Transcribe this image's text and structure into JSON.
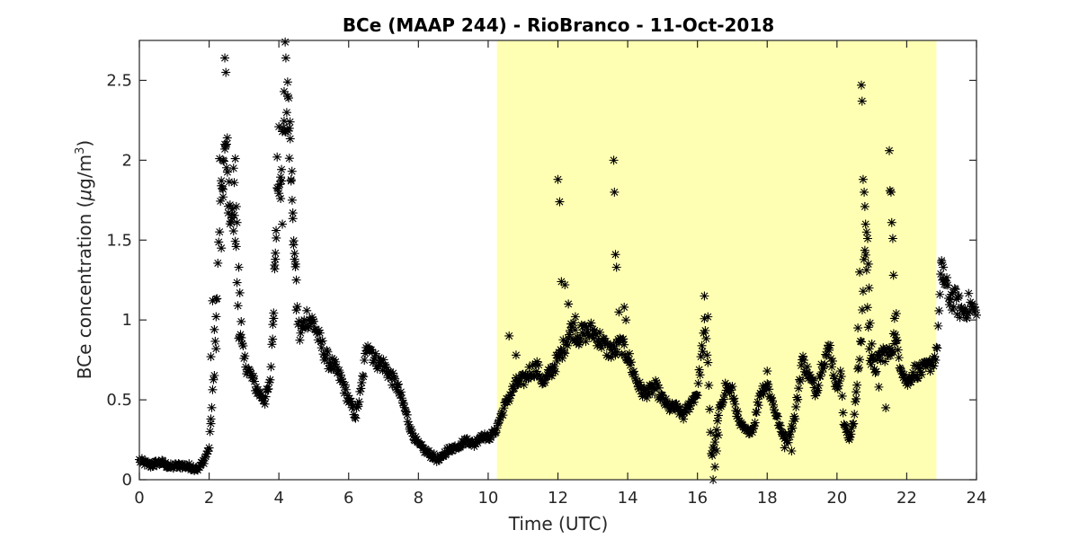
{
  "chart_data": {
    "type": "scatter",
    "title": "BCe (MAAP 244) - RioBranco - 11-Oct-2018",
    "xlabel": "Time (UTC)",
    "ylabel_main": "BCe concentration (",
    "ylabel_mu": "μ",
    "ylabel_unit": "g/m",
    "ylabel_sup": "3",
    "ylabel_close": ")",
    "xlim": [
      0,
      24
    ],
    "ylim": [
      0,
      2.75
    ],
    "xticks": [
      0,
      2,
      4,
      6,
      8,
      10,
      12,
      14,
      16,
      18,
      20,
      22,
      24
    ],
    "yticks": [
      0,
      0.5,
      1,
      1.5,
      2,
      2.5
    ],
    "ytick_labels": [
      "0",
      "0.5",
      "1",
      "1.5",
      "2",
      "2.5"
    ],
    "marker": "asterisk",
    "marker_color": "#000000",
    "highlight": {
      "x_start": 10.25,
      "x_end": 22.85,
      "color": "#ffffb3"
    },
    "keypoints": [
      [
        0.0,
        0.12
      ],
      [
        0.3,
        0.09
      ],
      [
        0.6,
        0.11
      ],
      [
        0.9,
        0.08
      ],
      [
        1.2,
        0.09
      ],
      [
        1.5,
        0.08
      ],
      [
        1.7,
        0.07
      ],
      [
        1.85,
        0.12
      ],
      [
        2.0,
        0.2
      ],
      [
        2.15,
        0.7
      ],
      [
        2.3,
        1.6
      ],
      [
        2.45,
        2.05
      ],
      [
        2.6,
        1.7
      ],
      [
        2.75,
        1.55
      ],
      [
        2.85,
        0.95
      ],
      [
        3.0,
        0.75
      ],
      [
        3.2,
        0.65
      ],
      [
        3.4,
        0.55
      ],
      [
        3.6,
        0.5
      ],
      [
        3.75,
        0.6
      ],
      [
        3.85,
        1.1
      ],
      [
        3.95,
        1.8
      ],
      [
        4.1,
        2.1
      ],
      [
        4.25,
        2.35
      ],
      [
        4.4,
        1.7
      ],
      [
        4.5,
        1.1
      ],
      [
        4.6,
        0.9
      ],
      [
        4.8,
        1.02
      ],
      [
        5.0,
        0.98
      ],
      [
        5.2,
        0.85
      ],
      [
        5.4,
        0.75
      ],
      [
        5.6,
        0.7
      ],
      [
        5.8,
        0.62
      ],
      [
        6.0,
        0.5
      ],
      [
        6.2,
        0.4
      ],
      [
        6.35,
        0.55
      ],
      [
        6.55,
        0.88
      ],
      [
        6.75,
        0.75
      ],
      [
        7.0,
        0.72
      ],
      [
        7.2,
        0.65
      ],
      [
        7.4,
        0.58
      ],
      [
        7.6,
        0.45
      ],
      [
        7.8,
        0.3
      ],
      [
        8.0,
        0.22
      ],
      [
        8.2,
        0.18
      ],
      [
        8.4,
        0.15
      ],
      [
        8.6,
        0.12
      ],
      [
        8.8,
        0.18
      ],
      [
        9.0,
        0.2
      ],
      [
        9.2,
        0.22
      ],
      [
        9.4,
        0.25
      ],
      [
        9.6,
        0.22
      ],
      [
        9.8,
        0.28
      ],
      [
        10.0,
        0.26
      ],
      [
        10.2,
        0.3
      ],
      [
        10.4,
        0.42
      ],
      [
        10.6,
        0.52
      ],
      [
        10.8,
        0.6
      ],
      [
        11.0,
        0.62
      ],
      [
        11.2,
        0.68
      ],
      [
        11.4,
        0.7
      ],
      [
        11.6,
        0.6
      ],
      [
        11.8,
        0.68
      ],
      [
        12.0,
        0.75
      ],
      [
        12.2,
        0.85
      ],
      [
        12.4,
        0.95
      ],
      [
        12.6,
        0.9
      ],
      [
        12.8,
        0.92
      ],
      [
        13.0,
        0.93
      ],
      [
        13.2,
        0.88
      ],
      [
        13.4,
        0.82
      ],
      [
        13.6,
        0.8
      ],
      [
        13.8,
        0.85
      ],
      [
        14.0,
        0.78
      ],
      [
        14.2,
        0.65
      ],
      [
        14.4,
        0.55
      ],
      [
        14.6,
        0.55
      ],
      [
        14.8,
        0.58
      ],
      [
        15.0,
        0.5
      ],
      [
        15.2,
        0.45
      ],
      [
        15.4,
        0.45
      ],
      [
        15.6,
        0.4
      ],
      [
        15.8,
        0.48
      ],
      [
        16.0,
        0.55
      ],
      [
        16.2,
        0.95
      ],
      [
        16.3,
        0.75
      ],
      [
        16.4,
        0.15
      ],
      [
        16.5,
        0.22
      ],
      [
        16.6,
        0.4
      ],
      [
        16.8,
        0.58
      ],
      [
        17.0,
        0.55
      ],
      [
        17.2,
        0.35
      ],
      [
        17.4,
        0.3
      ],
      [
        17.6,
        0.32
      ],
      [
        17.8,
        0.55
      ],
      [
        18.0,
        0.6
      ],
      [
        18.2,
        0.45
      ],
      [
        18.4,
        0.3
      ],
      [
        18.6,
        0.25
      ],
      [
        18.8,
        0.4
      ],
      [
        19.0,
        0.75
      ],
      [
        19.2,
        0.65
      ],
      [
        19.4,
        0.55
      ],
      [
        19.6,
        0.75
      ],
      [
        19.8,
        0.82
      ],
      [
        20.0,
        0.55
      ],
      [
        20.1,
        0.7
      ],
      [
        20.2,
        0.35
      ],
      [
        20.35,
        0.25
      ],
      [
        20.5,
        0.4
      ],
      [
        20.7,
        0.9
      ],
      [
        20.8,
        1.5
      ],
      [
        20.95,
        0.75
      ],
      [
        21.1,
        0.7
      ],
      [
        21.3,
        0.8
      ],
      [
        21.5,
        0.78
      ],
      [
        21.65,
        0.9
      ],
      [
        21.8,
        0.75
      ],
      [
        22.0,
        0.6
      ],
      [
        22.2,
        0.68
      ],
      [
        22.4,
        0.68
      ],
      [
        22.6,
        0.7
      ],
      [
        22.85,
        0.78
      ],
      [
        23.0,
        1.3
      ],
      [
        23.2,
        1.15
      ],
      [
        23.4,
        1.12
      ],
      [
        23.6,
        1.05
      ],
      [
        23.8,
        1.1
      ],
      [
        24.0,
        1.03
      ]
    ],
    "scatter_points": [
      [
        2.05,
        0.38
      ],
      [
        2.05,
        0.77
      ],
      [
        2.1,
        1.12
      ],
      [
        2.15,
        0.94
      ],
      [
        2.2,
        1.13
      ],
      [
        2.2,
        0.82
      ],
      [
        2.3,
        2.01
      ],
      [
        2.35,
        1.84
      ],
      [
        2.35,
        1.45
      ],
      [
        2.4,
        1.77
      ],
      [
        2.4,
        2.0
      ],
      [
        2.45,
        2.07
      ],
      [
        2.45,
        2.64
      ],
      [
        2.48,
        2.55
      ],
      [
        2.5,
        2.1
      ],
      [
        2.52,
        2.14
      ],
      [
        2.55,
        1.67
      ],
      [
        2.6,
        1.72
      ],
      [
        2.65,
        1.66
      ],
      [
        2.7,
        1.95
      ],
      [
        2.72,
        1.86
      ],
      [
        2.75,
        2.01
      ],
      [
        2.78,
        1.71
      ],
      [
        2.8,
        1.61
      ],
      [
        2.85,
        1.33
      ],
      [
        2.88,
        1.17
      ],
      [
        2.92,
        0.99
      ],
      [
        3.82,
        0.88
      ],
      [
        3.85,
        1.01
      ],
      [
        3.88,
        1.32
      ],
      [
        3.9,
        1.38
      ],
      [
        3.92,
        1.56
      ],
      [
        3.95,
        2.02
      ],
      [
        4.0,
        2.21
      ],
      [
        4.02,
        1.85
      ],
      [
        4.05,
        1.76
      ],
      [
        4.08,
        1.87
      ],
      [
        4.1,
        1.6
      ],
      [
        4.15,
        2.43
      ],
      [
        4.18,
        2.74
      ],
      [
        4.2,
        2.64
      ],
      [
        4.25,
        2.4
      ],
      [
        4.28,
        2.39
      ],
      [
        4.3,
        2.2
      ],
      [
        4.32,
        2.24
      ],
      [
        4.35,
        1.87
      ],
      [
        4.38,
        1.75
      ],
      [
        4.4,
        1.67
      ],
      [
        4.42,
        1.47
      ],
      [
        4.45,
        1.38
      ],
      [
        4.48,
        1.35
      ],
      [
        4.5,
        1.25
      ],
      [
        10.6,
        0.9
      ],
      [
        10.8,
        0.78
      ],
      [
        12.0,
        1.88
      ],
      [
        12.05,
        1.74
      ],
      [
        12.1,
        1.24
      ],
      [
        12.2,
        1.22
      ],
      [
        12.3,
        1.1
      ],
      [
        12.5,
        1.02
      ],
      [
        13.6,
        2.0
      ],
      [
        13.62,
        1.8
      ],
      [
        13.65,
        1.41
      ],
      [
        13.68,
        1.33
      ],
      [
        13.75,
        1.05
      ],
      [
        13.9,
        1.08
      ],
      [
        13.95,
        1.0
      ],
      [
        16.2,
        1.15
      ],
      [
        16.3,
        1.02
      ],
      [
        16.45,
        0.0
      ],
      [
        16.5,
        0.08
      ],
      [
        16.55,
        0.18
      ],
      [
        16.6,
        0.28
      ],
      [
        18.0,
        0.68
      ],
      [
        18.5,
        0.2
      ],
      [
        18.7,
        0.18
      ],
      [
        20.65,
        1.3
      ],
      [
        20.7,
        2.47
      ],
      [
        20.72,
        2.37
      ],
      [
        20.75,
        1.88
      ],
      [
        20.78,
        1.8
      ],
      [
        20.8,
        1.71
      ],
      [
        20.82,
        1.6
      ],
      [
        20.85,
        1.55
      ],
      [
        20.88,
        1.51
      ],
      [
        20.9,
        1.35
      ],
      [
        20.92,
        1.2
      ],
      [
        20.95,
        0.98
      ],
      [
        21.0,
        0.85
      ],
      [
        20.6,
        0.95
      ],
      [
        20.55,
        0.55
      ],
      [
        21.5,
        2.06
      ],
      [
        21.52,
        1.81
      ],
      [
        21.55,
        1.8
      ],
      [
        21.57,
        1.61
      ],
      [
        21.6,
        1.51
      ],
      [
        21.62,
        1.28
      ],
      [
        21.65,
        1.01
      ],
      [
        21.7,
        1.04
      ],
      [
        21.4,
        0.45
      ],
      [
        21.2,
        0.58
      ],
      [
        23.0,
        1.36
      ],
      [
        23.05,
        1.33
      ],
      [
        23.1,
        1.25
      ]
    ]
  }
}
